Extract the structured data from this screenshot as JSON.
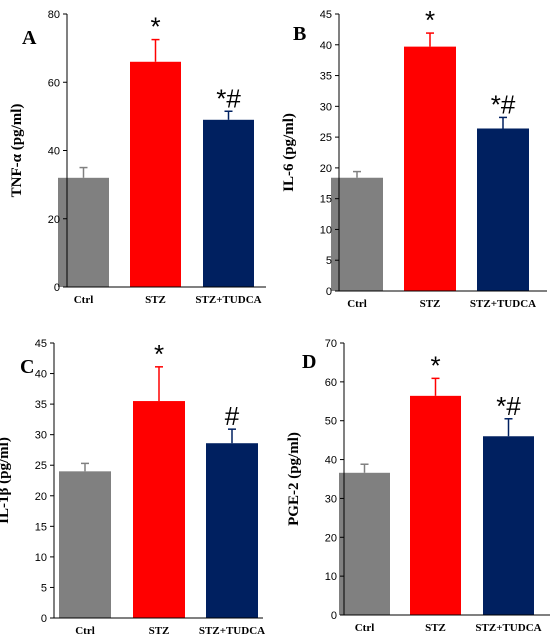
{
  "colors": {
    "Ctrl": "#808080",
    "STZ": "#ff0000",
    "STZ+TUDCA": "#002060",
    "axis": "#000000"
  },
  "chart_data": [
    {
      "type": "bar",
      "panel": "A",
      "categories": [
        "Ctrl",
        "STZ",
        "STZ+TUDCA"
      ],
      "values": [
        32,
        66,
        49
      ],
      "errors": [
        3,
        6.5,
        2.5
      ],
      "annotations": [
        "",
        "*",
        "*#"
      ],
      "ylabel": "TNF-α (pg/ml)",
      "ylim": [
        0,
        80
      ],
      "yticks": [
        0,
        20,
        40,
        60,
        80
      ],
      "grid": false,
      "legend": "none"
    },
    {
      "type": "bar",
      "panel": "B",
      "categories": [
        "Ctrl",
        "STZ",
        "STZ+TUDCA"
      ],
      "values": [
        18.4,
        39.7,
        26.4
      ],
      "errors": [
        1.0,
        2.2,
        1.8
      ],
      "annotations": [
        "",
        "*",
        "*#"
      ],
      "ylabel": "IL-6 (pg/ml)",
      "ylim": [
        0,
        45
      ],
      "yticks": [
        0,
        5,
        10,
        15,
        20,
        25,
        30,
        35,
        40,
        45
      ],
      "grid": false,
      "legend": "none"
    },
    {
      "type": "bar",
      "panel": "C",
      "categories": [
        "Ctrl",
        "STZ",
        "STZ+TUDCA"
      ],
      "values": [
        24,
        35.5,
        28.6
      ],
      "errors": [
        1.3,
        5.6,
        2.3
      ],
      "annotations": [
        "",
        "*",
        "#"
      ],
      "ylabel": "IL-1β (pg/ml)",
      "ylim": [
        0,
        45
      ],
      "yticks": [
        0,
        5,
        10,
        15,
        20,
        25,
        30,
        35,
        40,
        45
      ],
      "grid": false,
      "legend": "none"
    },
    {
      "type": "bar",
      "panel": "D",
      "categories": [
        "Ctrl",
        "STZ",
        "STZ+TUDCA"
      ],
      "values": [
        36.6,
        56.4,
        46
      ],
      "errors": [
        2.2,
        4.5,
        4.5
      ],
      "annotations": [
        "",
        "*",
        "*#"
      ],
      "ylabel": "PGE-2 (pg/ml)",
      "ylim": [
        0,
        70
      ],
      "yticks": [
        0,
        10,
        20,
        30,
        40,
        50,
        60,
        70
      ],
      "grid": false,
      "legend": "none"
    }
  ]
}
